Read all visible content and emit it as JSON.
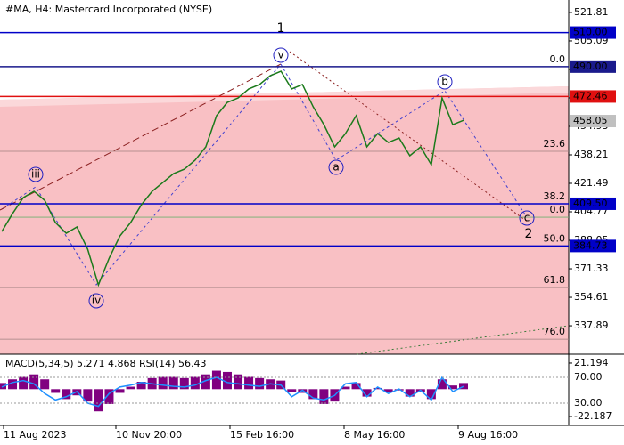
{
  "chart_data": {
    "type": "line",
    "title": "#MA, H4:  Mastercard Incorporated (NYSE)",
    "color": "#1b7a1b",
    "values": [
      393.2,
      403.7,
      413.1,
      416.8,
      411.5,
      398.5,
      392.2,
      395.9,
      382.8,
      361.9,
      377.6,
      390.6,
      398.5,
      408.9,
      416.8,
      422.0,
      427.2,
      429.8,
      435.1,
      442.9,
      461.2,
      469.0,
      471.6,
      476.9,
      479.5,
      484.7,
      487.3,
      476.9,
      479.5,
      466.4,
      455.9,
      442.9,
      450.7,
      461.2,
      442.9,
      450.7,
      445.5,
      448.1,
      437.7,
      442.9,
      432.4,
      471.6,
      455.9,
      458.5
    ],
    "ylim": [
      321.2,
      529.1
    ],
    "yticks": [
      521.81,
      505.09,
      488.37,
      471.65,
      454.93,
      438.21,
      421.49,
      404.77,
      388.05,
      371.33,
      354.61,
      337.89
    ],
    "levels": [
      {
        "value": 510,
        "label": "510.00",
        "color": "#0000c8"
      },
      {
        "value": 490,
        "label": "490.00",
        "color": "#1a1a8c"
      },
      {
        "value": 472.46,
        "label": "472.46",
        "color": "#e01010"
      },
      {
        "value": 458.05,
        "label": "458.05",
        "color": "#c0c0c0"
      },
      {
        "value": 409.5,
        "label": "409.50",
        "color": "#0000c8"
      },
      {
        "value": 384.73,
        "label": "384.73",
        "color": "#0000c8"
      }
    ],
    "fib": [
      {
        "value": 490,
        "label": "0.0"
      },
      {
        "value": 440.3,
        "label": "23.6"
      },
      {
        "value": 409.5,
        "label": "38.2"
      },
      {
        "value": 401.6,
        "label": "0.0"
      },
      {
        "value": 384.7,
        "label": "50.0"
      },
      {
        "value": 360.3,
        "label": "61.8"
      },
      {
        "value": 330.0,
        "label": "76.0"
      }
    ],
    "waves": [
      "1",
      "v",
      "iii",
      "iv",
      "a",
      "b",
      "c",
      "2"
    ],
    "xlabels": [
      "11 Aug 2023",
      "10 Nov 20:00",
      "15 Feb 16:00",
      "8 May 16:00",
      "9 Aug 16:00"
    ],
    "macd": {
      "title": "MACD(5,34,5) 5.271 4.868 RSI(14) 56.43",
      "values": [
        5,
        8,
        10,
        12,
        8,
        -3,
        -8,
        -5,
        -10,
        -18,
        -12,
        -3,
        2,
        6,
        9,
        10,
        10,
        9,
        10,
        12,
        15,
        14,
        12,
        10,
        9,
        8,
        7,
        -2,
        -3,
        -8,
        -12,
        -10,
        2,
        5,
        -6,
        1,
        -2,
        -1,
        -6,
        -2,
        -8,
        8,
        3,
        5
      ],
      "color": "#800080",
      "ylim": [
        -29.4,
        28.4
      ],
      "yticks": [
        21.194,
        -22.187
      ],
      "rsi": [
        55,
        62,
        65,
        60,
        45,
        35,
        40,
        48,
        30,
        25,
        45,
        55,
        58,
        62,
        60,
        58,
        56,
        55,
        58,
        65,
        70,
        62,
        60,
        58,
        56,
        60,
        58,
        40,
        50,
        38,
        35,
        42,
        60,
        62,
        40,
        55,
        45,
        52,
        40,
        50,
        35,
        70,
        48,
        56
      ],
      "rsi_color": "#1e90ff",
      "rsi_ylim": [
        -4.5,
        105.9
      ],
      "rsi_ticks": [
        {
          "value": 70,
          "label": "70.00"
        },
        {
          "value": 30,
          "label": "30.00"
        }
      ]
    }
  }
}
